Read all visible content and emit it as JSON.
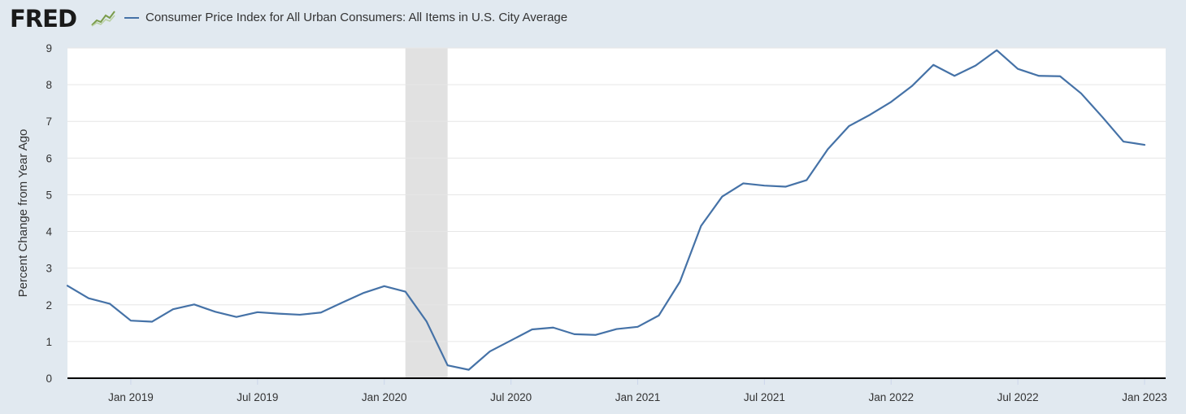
{
  "header": {
    "logo": "FRED",
    "logo_icon": "line-chart-icon",
    "series_label": "Consumer Price Index for All Urban Consumers: All Items in U.S. City Average"
  },
  "colors": {
    "background": "#e1e9f0",
    "plot_background": "#ffffff",
    "series_line": "#4572a7",
    "recession_band": "#e1e1e1",
    "grid": "#e6e6e6"
  },
  "chart_data": {
    "type": "line",
    "title": "",
    "xlabel": "",
    "ylabel": "Percent Change from Year Ago",
    "ylim": [
      0,
      9
    ],
    "yticks": [
      0,
      1,
      2,
      3,
      4,
      5,
      6,
      7,
      8,
      9
    ],
    "xlim": [
      "2018-10",
      "2023-02"
    ],
    "xticks": [
      {
        "date": "2019-01",
        "label": "Jan 2019"
      },
      {
        "date": "2019-07",
        "label": "Jul 2019"
      },
      {
        "date": "2020-01",
        "label": "Jan 2020"
      },
      {
        "date": "2020-07",
        "label": "Jul 2020"
      },
      {
        "date": "2021-01",
        "label": "Jan 2021"
      },
      {
        "date": "2021-07",
        "label": "Jul 2021"
      },
      {
        "date": "2022-01",
        "label": "Jan 2022"
      },
      {
        "date": "2022-07",
        "label": "Jul 2022"
      },
      {
        "date": "2023-01",
        "label": "Jan 2023"
      }
    ],
    "recession": {
      "start": "2020-02",
      "end": "2020-04"
    },
    "grid": true,
    "legend": "top-left",
    "series": [
      {
        "name": "Consumer Price Index for All Urban Consumers: All Items in U.S. City Average",
        "x": [
          "2018-10",
          "2018-11",
          "2018-12",
          "2019-01",
          "2019-02",
          "2019-03",
          "2019-04",
          "2019-05",
          "2019-06",
          "2019-07",
          "2019-08",
          "2019-09",
          "2019-10",
          "2019-11",
          "2019-12",
          "2020-01",
          "2020-02",
          "2020-03",
          "2020-04",
          "2020-05",
          "2020-06",
          "2020-07",
          "2020-08",
          "2020-09",
          "2020-10",
          "2020-11",
          "2020-12",
          "2021-01",
          "2021-02",
          "2021-03",
          "2021-04",
          "2021-05",
          "2021-06",
          "2021-07",
          "2021-08",
          "2021-09",
          "2021-10",
          "2021-11",
          "2021-12",
          "2022-01",
          "2022-02",
          "2022-03",
          "2022-04",
          "2022-05",
          "2022-06",
          "2022-07",
          "2022-08",
          "2022-09",
          "2022-10",
          "2022-11",
          "2022-12",
          "2023-01"
        ],
        "values": [
          2.52,
          2.18,
          2.03,
          1.57,
          1.54,
          1.88,
          2.01,
          1.81,
          1.67,
          1.8,
          1.76,
          1.73,
          1.79,
          2.06,
          2.32,
          2.51,
          2.36,
          1.55,
          0.35,
          0.23,
          0.73,
          1.03,
          1.33,
          1.38,
          1.2,
          1.18,
          1.34,
          1.4,
          1.71,
          2.63,
          4.15,
          4.95,
          5.31,
          5.25,
          5.22,
          5.4,
          6.24,
          6.87,
          7.18,
          7.53,
          7.97,
          8.54,
          8.24,
          8.52,
          8.94,
          8.43,
          8.24,
          8.23,
          7.76,
          7.12,
          6.45,
          6.36
        ]
      }
    ]
  }
}
